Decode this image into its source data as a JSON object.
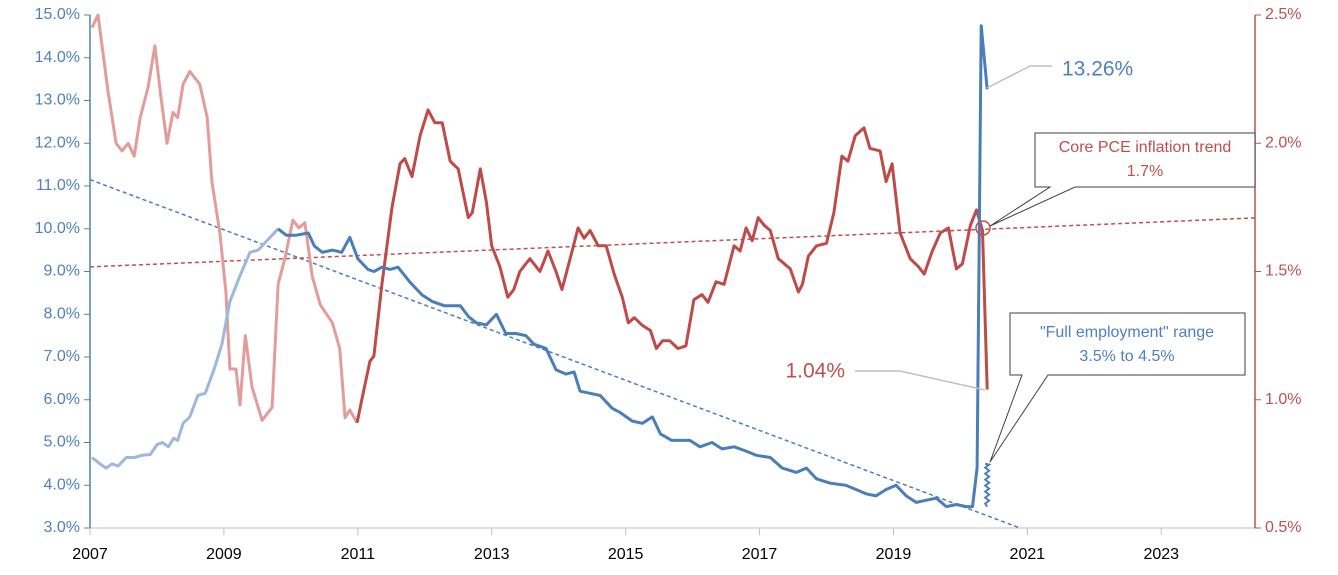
{
  "chart_data": {
    "type": "line",
    "xlim": [
      2007,
      2024.4
    ],
    "xticks": [
      2007,
      2009,
      2011,
      2013,
      2015,
      2017,
      2019,
      2021,
      2023
    ],
    "ylim": [
      3,
      15
    ],
    "yticks": [
      {
        "value": 3,
        "label": "3.0%"
      },
      {
        "value": 4,
        "label": "4.0%"
      },
      {
        "value": 5,
        "label": "5.0%"
      },
      {
        "value": 6,
        "label": "6.0%"
      },
      {
        "value": 7,
        "label": "7.0%"
      },
      {
        "value": 8,
        "label": "8.0%"
      },
      {
        "value": 9,
        "label": "9.0%"
      },
      {
        "value": 10,
        "label": "10.0%"
      },
      {
        "value": 11,
        "label": "11.0%"
      },
      {
        "value": 12,
        "label": "12.0%"
      },
      {
        "value": 13,
        "label": "13.0%"
      },
      {
        "value": 14,
        "label": "14.0%"
      },
      {
        "value": 15,
        "label": "15.0%"
      }
    ],
    "y2lim": [
      0.5,
      2.5
    ],
    "y2ticks": [
      {
        "value": 0.5,
        "label": "0.5%"
      },
      {
        "value": 1,
        "label": "1.0%"
      },
      {
        "value": 1.5,
        "label": "1.5%"
      },
      {
        "value": 2,
        "label": "2.0%"
      },
      {
        "value": 2.5,
        "label": "2.5%"
      }
    ],
    "y_axis_color": "#4f81bd",
    "y2_axis_color": "#c0504d",
    "series": [
      {
        "axis": "y2",
        "color": "#e39c9a",
        "x": [
          2007.03,
          2007.12,
          2007.27,
          2007.39,
          2007.48,
          2007.57,
          2007.66,
          2007.75,
          2007.87,
          2007.97,
          2008.05,
          2008.15,
          2008.24,
          2008.31,
          2008.39,
          2008.49,
          2008.64,
          2008.75,
          2008.82,
          2008.94,
          2009.03,
          2009.09,
          2009.18,
          2009.24,
          2009.32,
          2009.42,
          2009.57,
          2009.72,
          2009.81,
          2009.91,
          2010.03,
          2010.12,
          2010.21,
          2010.32,
          2010.44,
          2010.62,
          2010.73,
          2010.81,
          2010.88,
          2010.99
        ],
        "values": [
          2.45,
          2.5,
          2.2,
          2.0,
          1.97,
          2.0,
          1.95,
          2.1,
          2.22,
          2.38,
          2.2,
          2.0,
          2.12,
          2.1,
          2.23,
          2.28,
          2.23,
          2.1,
          1.85,
          1.65,
          1.42,
          1.12,
          1.12,
          0.98,
          1.25,
          1.05,
          0.92,
          0.97,
          1.45,
          1.55,
          1.7,
          1.67,
          1.69,
          1.48,
          1.37,
          1.3,
          1.2,
          0.93,
          0.96,
          0.91
        ]
      },
      {
        "axis": "y2",
        "color": "#be4b48",
        "x": [
          2010.99,
          2011.06,
          2011.18,
          2011.24,
          2011.36,
          2011.51,
          2011.63,
          2011.7,
          2011.81,
          2011.93,
          2012.05,
          2012.15,
          2012.26,
          2012.38,
          2012.5,
          2012.65,
          2012.71,
          2012.83,
          2012.92,
          2013.0,
          2013.12,
          2013.24,
          2013.33,
          2013.42,
          2013.57,
          2013.72,
          2013.84,
          2013.96,
          2014.05,
          2014.17,
          2014.29,
          2014.38,
          2014.47,
          2014.59,
          2014.71,
          2014.83,
          2014.95,
          2015.04,
          2015.13,
          2015.25,
          2015.37,
          2015.46,
          2015.55,
          2015.66,
          2015.78,
          2015.9,
          2016.02,
          2016.14,
          2016.23,
          2016.35,
          2016.47,
          2016.62,
          2016.71,
          2016.8,
          2016.89,
          2016.98,
          2017.07,
          2017.16,
          2017.28,
          2017.46,
          2017.58,
          2017.64,
          2017.73,
          2017.85,
          2018.0,
          2018.11,
          2018.23,
          2018.32,
          2018.43,
          2018.56,
          2018.65,
          2018.8,
          2018.89,
          2018.98,
          2019.1,
          2019.25,
          2019.37,
          2019.46,
          2019.58,
          2019.7,
          2019.82,
          2019.94,
          2020.03,
          2020.15,
          2020.24,
          2020.33,
          2020.4
        ],
        "values": [
          0.91,
          1.0,
          1.15,
          1.17,
          1.45,
          1.75,
          1.92,
          1.94,
          1.87,
          2.03,
          2.13,
          2.08,
          2.08,
          1.93,
          1.9,
          1.71,
          1.73,
          1.9,
          1.77,
          1.6,
          1.52,
          1.4,
          1.43,
          1.5,
          1.55,
          1.5,
          1.58,
          1.5,
          1.43,
          1.55,
          1.67,
          1.63,
          1.66,
          1.6,
          1.6,
          1.49,
          1.4,
          1.3,
          1.32,
          1.29,
          1.27,
          1.2,
          1.23,
          1.23,
          1.2,
          1.21,
          1.39,
          1.41,
          1.38,
          1.46,
          1.45,
          1.6,
          1.58,
          1.67,
          1.62,
          1.71,
          1.68,
          1.66,
          1.55,
          1.51,
          1.42,
          1.45,
          1.56,
          1.6,
          1.61,
          1.73,
          1.95,
          1.93,
          2.03,
          2.06,
          1.98,
          1.97,
          1.85,
          1.92,
          1.65,
          1.55,
          1.52,
          1.49,
          1.58,
          1.65,
          1.67,
          1.51,
          1.53,
          1.68,
          1.74,
          1.66,
          1.04
        ]
      },
      {
        "color": "#9db8de",
        "x": [
          2007.03,
          2007.15,
          2007.24,
          2007.33,
          2007.42,
          2007.54,
          2007.66,
          2007.78,
          2007.9,
          2008.0,
          2008.08,
          2008.17,
          2008.25,
          2008.31,
          2008.39,
          2008.49,
          2008.61,
          2008.72,
          2008.85,
          2008.97,
          2009.09,
          2009.24,
          2009.39,
          2009.51,
          2009.63,
          2009.81
        ],
        "values": [
          4.65,
          4.5,
          4.4,
          4.5,
          4.45,
          4.65,
          4.65,
          4.7,
          4.72,
          4.95,
          5.0,
          4.9,
          5.1,
          5.05,
          5.45,
          5.6,
          6.1,
          6.15,
          6.7,
          7.3,
          8.3,
          8.9,
          9.45,
          9.5,
          9.7,
          10.0
        ]
      },
      {
        "color": "#4a7ebb",
        "x": [
          2009.81,
          2009.93,
          2010.08,
          2010.26,
          2010.35,
          2010.47,
          2010.62,
          2010.76,
          2010.88,
          2011.0,
          2011.15,
          2011.24,
          2011.36,
          2011.48,
          2011.6,
          2011.78,
          2011.96,
          2012.11,
          2012.29,
          2012.53,
          2012.65,
          2012.77,
          2012.92,
          2013.07,
          2013.21,
          2013.36,
          2013.51,
          2013.63,
          2013.81,
          2013.96,
          2014.11,
          2014.23,
          2014.32,
          2014.47,
          2014.62,
          2014.8,
          2014.92,
          2015.1,
          2015.25,
          2015.4,
          2015.52,
          2015.69,
          2015.96,
          2016.11,
          2016.29,
          2016.44,
          2016.62,
          2016.8,
          2016.95,
          2017.16,
          2017.34,
          2017.55,
          2017.7,
          2017.85,
          2018.05,
          2018.29,
          2018.44,
          2018.59,
          2018.74,
          2018.89,
          2019.04,
          2019.19,
          2019.34,
          2019.49,
          2019.64,
          2019.79,
          2019.94,
          2020.09,
          2020.18,
          2020.25,
          2020.31,
          2020.4
        ],
        "values": [
          10.0,
          9.85,
          9.85,
          9.9,
          9.6,
          9.45,
          9.5,
          9.45,
          9.8,
          9.3,
          9.05,
          9.0,
          9.1,
          9.05,
          9.1,
          8.75,
          8.45,
          8.3,
          8.2,
          8.2,
          7.95,
          7.8,
          7.75,
          8.0,
          7.55,
          7.55,
          7.5,
          7.3,
          7.2,
          6.7,
          6.6,
          6.65,
          6.2,
          6.15,
          6.1,
          5.8,
          5.7,
          5.5,
          5.45,
          5.6,
          5.2,
          5.05,
          5.05,
          4.9,
          5.0,
          4.85,
          4.9,
          4.8,
          4.7,
          4.65,
          4.4,
          4.3,
          4.4,
          4.15,
          4.05,
          4.0,
          3.9,
          3.8,
          3.75,
          3.9,
          4.0,
          3.75,
          3.6,
          3.65,
          3.7,
          3.5,
          3.55,
          3.5,
          3.5,
          4.4,
          14.75,
          13.26
        ]
      }
    ],
    "trend_lines": [
      {
        "axis": "y",
        "color": "#4a7ebb",
        "x": [
          2007,
          2020.89
        ],
        "values": [
          11.15,
          3.0
        ]
      },
      {
        "axis": "y2",
        "color": "#c0504d",
        "x": [
          2007,
          2024.4
        ],
        "values": [
          1.518,
          1.709
        ]
      }
    ],
    "range_marker": {
      "color": "#4a7ebb",
      "x": 2020.4,
      "values": [
        3.5,
        4.5
      ]
    },
    "annotations": [
      {
        "text": "13.26%",
        "color": "#4f81bd"
      },
      {
        "text": "1.04%",
        "color": "#c0504d"
      },
      {
        "lines": [
          "Core PCE inflation trend",
          "1.7%"
        ],
        "color": "#c0504d"
      },
      {
        "lines": [
          "\"Full employment\" range",
          "3.5% to 4.5%"
        ],
        "color": "#4f81bd"
      }
    ]
  }
}
